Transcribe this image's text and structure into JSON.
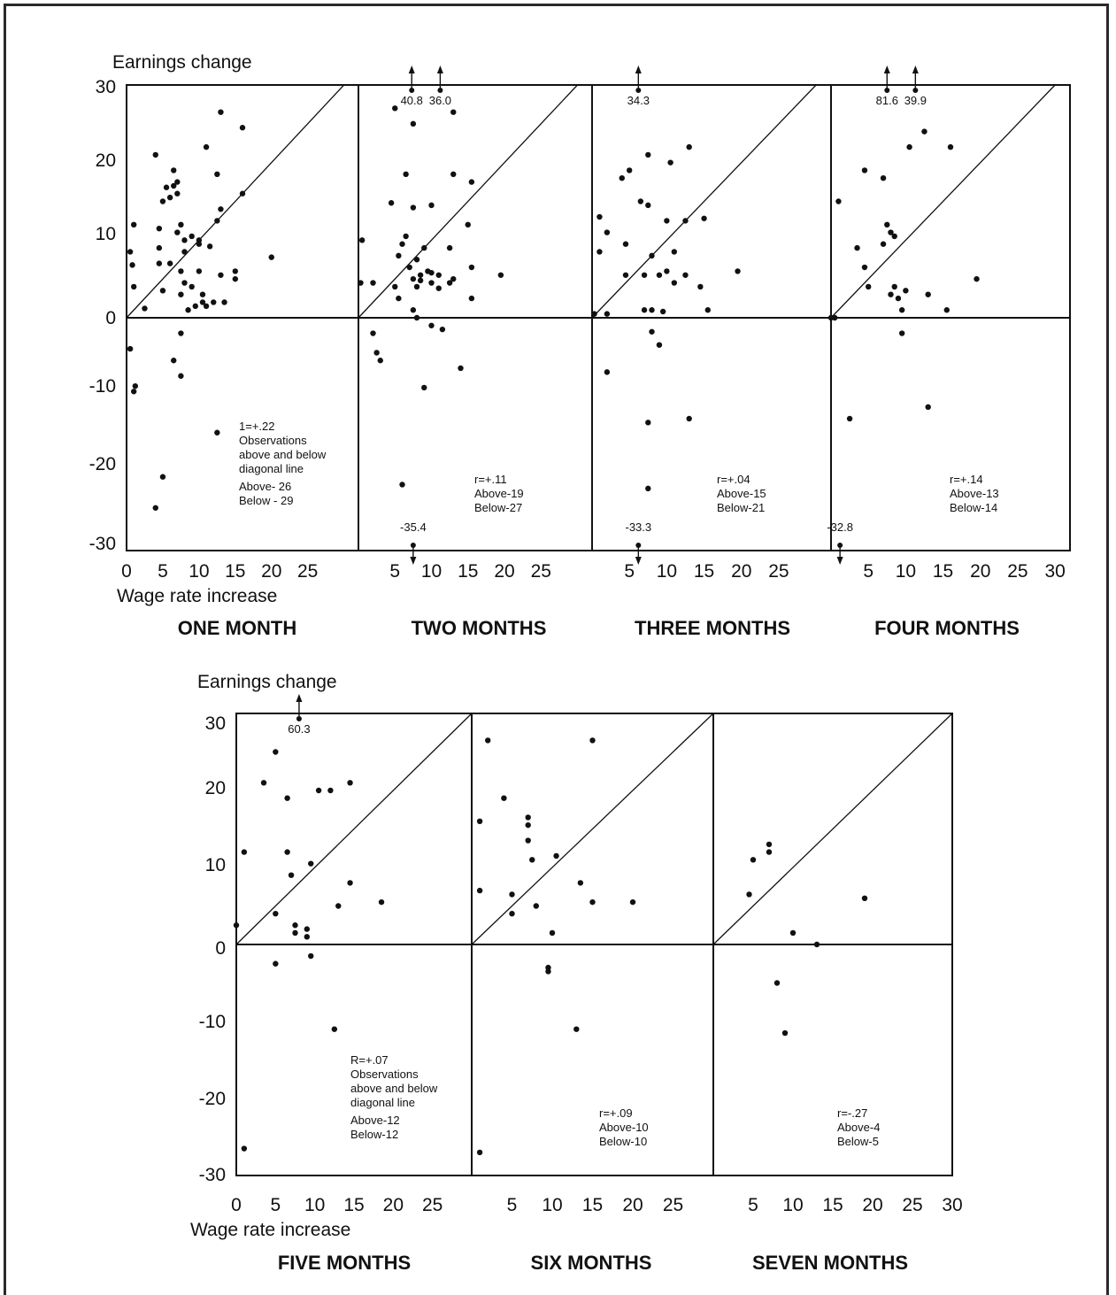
{
  "figure": {
    "rows": [
      {
        "ylabel": "Earnings change",
        "xlabel": "Wage rate increase",
        "yticks": [
          "30",
          "20",
          "10",
          "0",
          "-10",
          "-20",
          "-30"
        ],
        "panel_titles": [
          "ONE MONTH",
          "TWO MONTHS",
          "THREE MONTHS",
          "FOUR MONTHS"
        ]
      },
      {
        "ylabel": "Earnings change",
        "xlabel": "Wage rate increase",
        "yticks": [
          "30",
          "20",
          "10",
          "0",
          "-10",
          "-20",
          "-30"
        ],
        "panel_titles": [
          "FIVE MONTHS",
          "SIX MONTHS",
          "SEVEN MONTHS"
        ]
      }
    ]
  },
  "chart_data": [
    {
      "type": "scatter",
      "title": "ONE MONTH",
      "xlabel": "Wage rate increase",
      "ylabel": "Earnings change",
      "xlim": [
        0,
        32
      ],
      "ylim": [
        -30,
        30
      ],
      "xticks": [
        "0",
        "5",
        "10",
        "15",
        "20",
        "25"
      ],
      "annotation": [
        "1=+.22",
        "Observations",
        "above and below",
        "diagonal line",
        "Above- 26",
        "Below - 29"
      ],
      "out_of_range": [],
      "points": [
        [
          0.5,
          8.5
        ],
        [
          0.8,
          6.8
        ],
        [
          1,
          12
        ],
        [
          1,
          4
        ],
        [
          2.5,
          1.2
        ],
        [
          4,
          21
        ],
        [
          4.5,
          11.5
        ],
        [
          4.5,
          9
        ],
        [
          4.5,
          7
        ],
        [
          5,
          15
        ],
        [
          5,
          3.5
        ],
        [
          5.5,
          16.8
        ],
        [
          6,
          15.5
        ],
        [
          6,
          7
        ],
        [
          6.5,
          17
        ],
        [
          6.5,
          19
        ],
        [
          7,
          17.5
        ],
        [
          7,
          16
        ],
        [
          7,
          11
        ],
        [
          7.5,
          12
        ],
        [
          7.5,
          6
        ],
        [
          7.5,
          3
        ],
        [
          8,
          4.5
        ],
        [
          8,
          8.5
        ],
        [
          8,
          10
        ],
        [
          8.5,
          1
        ],
        [
          9,
          10.5
        ],
        [
          9,
          4
        ],
        [
          9.5,
          1.5
        ],
        [
          10,
          6
        ],
        [
          10,
          9.5
        ],
        [
          10,
          10
        ],
        [
          10.5,
          3
        ],
        [
          10.5,
          2
        ],
        [
          11,
          22
        ],
        [
          11,
          1.5
        ],
        [
          11.5,
          9.2
        ],
        [
          12,
          2
        ],
        [
          12.5,
          12.5
        ],
        [
          12.5,
          18.5
        ],
        [
          13,
          14
        ],
        [
          13,
          26.5
        ],
        [
          13,
          5.5
        ],
        [
          13.5,
          2
        ],
        [
          15,
          6
        ],
        [
          15,
          5
        ],
        [
          16,
          24.5
        ],
        [
          16,
          16
        ],
        [
          20,
          7.8
        ],
        [
          0.5,
          -4
        ],
        [
          1,
          -9.5
        ],
        [
          1.2,
          -8.8
        ],
        [
          4,
          -24.5
        ],
        [
          5,
          -20.5
        ],
        [
          6.5,
          -5.5
        ],
        [
          7.5,
          -2
        ],
        [
          7.5,
          -7.5
        ],
        [
          12.5,
          -14.8
        ]
      ]
    },
    {
      "type": "scatter",
      "title": "TWO MONTHS",
      "xlabel": "Wage rate increase",
      "ylabel": "Earnings change",
      "xlim": [
        0,
        32
      ],
      "ylim": [
        -30,
        30
      ],
      "xticks": [
        "5",
        "10",
        "15",
        "20",
        "25"
      ],
      "annotation": [
        "r=+.11",
        "Above-19",
        "Below-27"
      ],
      "out_of_range": [
        {
          "x": 7.3,
          "direction": "up",
          "label": "40.8"
        },
        {
          "x": 11.2,
          "direction": "up",
          "label": "36.0"
        },
        {
          "x": 7.5,
          "direction": "down",
          "label": "-35.4"
        }
      ],
      "points": [
        [
          0.3,
          4.5
        ],
        [
          0.5,
          10
        ],
        [
          2,
          4.5
        ],
        [
          4.5,
          14.8
        ],
        [
          5,
          4
        ],
        [
          5,
          27
        ],
        [
          5.5,
          2.5
        ],
        [
          5.5,
          8
        ],
        [
          6,
          9.5
        ],
        [
          6.5,
          18.5
        ],
        [
          6.5,
          10.5
        ],
        [
          7,
          6.5
        ],
        [
          7.5,
          25
        ],
        [
          7.5,
          14.2
        ],
        [
          7.5,
          5
        ],
        [
          7.5,
          1
        ],
        [
          8,
          7.5
        ],
        [
          8,
          4
        ],
        [
          8.5,
          5.5
        ],
        [
          8.5,
          4.8
        ],
        [
          9,
          9
        ],
        [
          9.5,
          6
        ],
        [
          10,
          4.5
        ],
        [
          10,
          14.5
        ],
        [
          10,
          5.8
        ],
        [
          11,
          3.8
        ],
        [
          11,
          5.5
        ],
        [
          12.5,
          9
        ],
        [
          12.5,
          4.5
        ],
        [
          13,
          5
        ],
        [
          13,
          18.5
        ],
        [
          13,
          26.5
        ],
        [
          15,
          12
        ],
        [
          15.5,
          6.5
        ],
        [
          15.5,
          17.5
        ],
        [
          15.5,
          2.5
        ],
        [
          19.5,
          5.5
        ],
        [
          2,
          -2
        ],
        [
          2.5,
          -4.5
        ],
        [
          3,
          -5.5
        ],
        [
          6,
          -21.5
        ],
        [
          8,
          0
        ],
        [
          10,
          -1
        ],
        [
          11.5,
          -1.5
        ],
        [
          9,
          -9
        ],
        [
          14,
          -6.5
        ]
      ]
    },
    {
      "type": "scatter",
      "title": "THREE MONTHS",
      "xlabel": "Wage rate increase",
      "ylabel": "Earnings change",
      "xlim": [
        0,
        32
      ],
      "ylim": [
        -30,
        30
      ],
      "xticks": [
        "5",
        "10",
        "15",
        "20",
        "25"
      ],
      "annotation": [
        "r=+.04",
        "Above-15",
        "Below-21"
      ],
      "out_of_range": [
        {
          "x": 6.2,
          "direction": "up",
          "label": "34.3"
        },
        {
          "x": 6.2,
          "direction": "down",
          "label": "-33.3"
        }
      ],
      "points": [
        [
          0.3,
          0.5
        ],
        [
          1,
          13
        ],
        [
          1,
          8.5
        ],
        [
          2,
          11
        ],
        [
          2,
          0.5
        ],
        [
          4,
          18
        ],
        [
          4.5,
          9.5
        ],
        [
          4.5,
          5.5
        ],
        [
          5,
          19
        ],
        [
          6.5,
          15
        ],
        [
          7,
          5.5
        ],
        [
          7,
          1
        ],
        [
          7.5,
          14.5
        ],
        [
          7.5,
          21
        ],
        [
          8,
          8
        ],
        [
          8,
          1
        ],
        [
          9,
          5.5
        ],
        [
          9.5,
          0.8
        ],
        [
          10,
          12.5
        ],
        [
          10,
          6
        ],
        [
          10.5,
          20
        ],
        [
          11,
          4.5
        ],
        [
          11,
          8.5
        ],
        [
          12.5,
          12.5
        ],
        [
          12.5,
          5.5
        ],
        [
          13,
          22
        ],
        [
          14.5,
          4
        ],
        [
          15,
          12.8
        ],
        [
          15.5,
          1
        ],
        [
          19.5,
          6
        ],
        [
          2,
          -7
        ],
        [
          7.5,
          -13.5
        ],
        [
          7.5,
          -22
        ],
        [
          8,
          -1.8
        ],
        [
          9,
          -3.5
        ],
        [
          13,
          -13
        ]
      ]
    },
    {
      "type": "scatter",
      "title": "FOUR MONTHS",
      "xlabel": "Wage rate increase",
      "ylabel": "Earnings change",
      "xlim": [
        0,
        32
      ],
      "ylim": [
        -30,
        30
      ],
      "xticks": [
        "5",
        "10",
        "15",
        "20",
        "25",
        "30"
      ],
      "annotation": [
        "r=+.14",
        "Above-13",
        "Below-14"
      ],
      "out_of_range": [
        {
          "x": 7.5,
          "direction": "up",
          "label": "81.6"
        },
        {
          "x": 11.3,
          "direction": "up",
          "label": "39.9"
        },
        {
          "x": 1.2,
          "direction": "down",
          "label": "-32.8"
        }
      ],
      "points": [
        [
          1,
          15
        ],
        [
          3.5,
          9
        ],
        [
          4.5,
          19
        ],
        [
          4.5,
          6.5
        ],
        [
          5,
          4
        ],
        [
          7,
          18
        ],
        [
          7,
          9.5
        ],
        [
          7.5,
          12
        ],
        [
          8,
          11
        ],
        [
          8,
          3
        ],
        [
          8.5,
          4
        ],
        [
          8.5,
          10.5
        ],
        [
          9,
          2.5
        ],
        [
          9.5,
          1
        ],
        [
          10,
          3.5
        ],
        [
          10.5,
          22
        ],
        [
          12.5,
          24
        ],
        [
          13,
          3
        ],
        [
          13,
          -11.5
        ],
        [
          15.5,
          1
        ],
        [
          16,
          22
        ],
        [
          19.5,
          5
        ],
        [
          2.5,
          -13
        ],
        [
          9.5,
          -2
        ],
        [
          0,
          0
        ],
        [
          0.5,
          0
        ]
      ]
    },
    {
      "type": "scatter",
      "title": "FIVE MONTHS",
      "xlabel": "Wage rate increase",
      "ylabel": "Earnings change",
      "xlim": [
        0,
        30
      ],
      "ylim": [
        -30,
        30
      ],
      "xticks": [
        "0",
        "5",
        "10",
        "15",
        "20",
        "25"
      ],
      "annotation": [
        "R=+.07",
        "Observations",
        "above and below",
        "diagonal line",
        "Above-12",
        "Below-12"
      ],
      "out_of_range": [
        {
          "x": 8,
          "direction": "up",
          "label": "60.3"
        }
      ],
      "points": [
        [
          0,
          2.5
        ],
        [
          1,
          12
        ],
        [
          3.5,
          21
        ],
        [
          5,
          4
        ],
        [
          5,
          25
        ],
        [
          6.5,
          19
        ],
        [
          6.5,
          12
        ],
        [
          7,
          9
        ],
        [
          7.5,
          2.5
        ],
        [
          7.5,
          1.5
        ],
        [
          9,
          2
        ],
        [
          9,
          1
        ],
        [
          9.5,
          10.5
        ],
        [
          10.5,
          20
        ],
        [
          12,
          20
        ],
        [
          13,
          5
        ],
        [
          14.5,
          21
        ],
        [
          14.5,
          8
        ],
        [
          18.5,
          5.5
        ],
        [
          5,
          -2.5
        ],
        [
          9.5,
          -1.5
        ],
        [
          12.5,
          -11
        ],
        [
          1,
          -26.5
        ]
      ]
    },
    {
      "type": "scatter",
      "title": "SIX MONTHS",
      "xlabel": "Wage rate increase",
      "ylabel": "Earnings change",
      "xlim": [
        0,
        30
      ],
      "ylim": [
        -30,
        30
      ],
      "xticks": [
        "5",
        "10",
        "15",
        "20",
        "25"
      ],
      "annotation": [
        "r=+.09",
        "Above-10",
        "Below-10"
      ],
      "out_of_range": [],
      "points": [
        [
          1,
          16
        ],
        [
          1,
          7
        ],
        [
          2,
          26.5
        ],
        [
          4,
          19
        ],
        [
          5,
          6.5
        ],
        [
          5,
          4
        ],
        [
          7,
          16.5
        ],
        [
          7,
          15.5
        ],
        [
          7,
          13.5
        ],
        [
          7.5,
          11
        ],
        [
          8,
          5
        ],
        [
          10,
          1.5
        ],
        [
          10.5,
          11.5
        ],
        [
          13.5,
          8
        ],
        [
          15,
          5.5
        ],
        [
          15,
          26.5
        ],
        [
          20,
          5.5
        ],
        [
          9.5,
          -3
        ],
        [
          9.5,
          -3.5
        ],
        [
          13,
          -11
        ],
        [
          1,
          -27
        ]
      ]
    },
    {
      "type": "scatter",
      "title": "SEVEN MONTHS",
      "xlabel": "Wage rate increase",
      "ylabel": "Earnings change",
      "xlim": [
        0,
        30
      ],
      "ylim": [
        -30,
        30
      ],
      "xticks": [
        "5",
        "10",
        "15",
        "20",
        "25",
        "30"
      ],
      "annotation": [
        "r=-.27",
        "Above-4",
        "Below-5"
      ],
      "out_of_range": [],
      "points": [
        [
          4.5,
          6.5
        ],
        [
          5,
          11
        ],
        [
          7,
          13
        ],
        [
          7,
          12
        ],
        [
          10,
          1.5
        ],
        [
          13,
          0
        ],
        [
          19,
          6
        ],
        [
          8,
          -5
        ],
        [
          9,
          -11.5
        ]
      ]
    }
  ]
}
